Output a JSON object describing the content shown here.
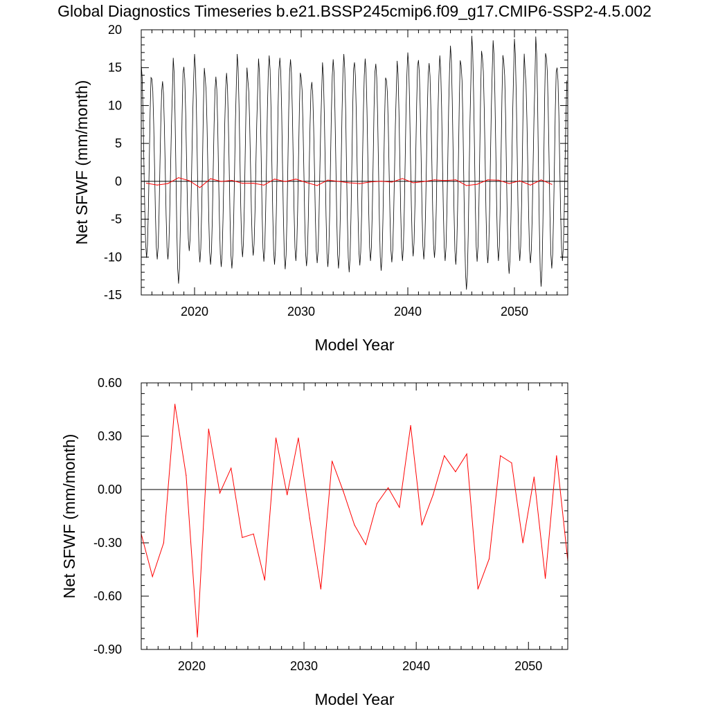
{
  "title": "Global Diagnostics Timeseries b.e21.BSSP245cmip6.f09_g17.CMIP6-SSP2-4.5.002",
  "colors": {
    "monthly": "#000000",
    "annual": "#ff0000",
    "zero_line": "#000000"
  },
  "chart_data": [
    {
      "type": "line",
      "xlabel": "Model Year",
      "ylabel": "Net SFWF (mm/month)",
      "xlim": [
        2015,
        2055
      ],
      "ylim": [
        -15,
        20
      ],
      "xticks": [
        2020,
        2030,
        2040,
        2050
      ],
      "yticks": [
        -15,
        -10,
        -5,
        0,
        5,
        10,
        15,
        20
      ],
      "ytick_labels": [
        "-15",
        "-10",
        "-5",
        "0",
        "5",
        "10",
        "15",
        "20"
      ],
      "reference_line_y": 0,
      "series": [
        {
          "kind": "monthly",
          "start_year": 2015,
          "annual_peaks": [
            15.4,
            13.5,
            13.2,
            16.3,
            15.1,
            16.8,
            13.6,
            13.8,
            14.3,
            16.8,
            13.4,
            16.2,
            16.6,
            16.3,
            16.1,
            13.7,
            13.1,
            15.7,
            16.1,
            16.8,
            15.7,
            16.2,
            15.5,
            13.3,
            15.9,
            17.0,
            16.0,
            15.6,
            16.6,
            17.9,
            15.3,
            19.2,
            16.3,
            18.6,
            15.8,
            18.8,
            14.6,
            19.1,
            16.3,
            15.0
          ],
          "annual_troughs": [
            -10.1,
            -10.3,
            -10.3,
            -13.5,
            -9.2,
            -10.7,
            -11.0,
            -11.3,
            -11.5,
            -10.0,
            -9.8,
            -10.6,
            -11.0,
            -11.6,
            -10.5,
            -11.2,
            -10.8,
            -11.3,
            -11.5,
            -12.0,
            -11.1,
            -10.5,
            -11.8,
            -10.7,
            -10.5,
            -9.9,
            -10.3,
            -10.1,
            -10.5,
            -11.0,
            -14.3,
            -10.6,
            -10.8,
            -10.5,
            -12.2,
            -10.5,
            -10.8,
            -13.9,
            -11.5,
            -10.5
          ]
        },
        {
          "kind": "annual",
          "x": [
            2015.5,
            2016.5,
            2017.5,
            2018.5,
            2019.5,
            2020.5,
            2021.5,
            2022.5,
            2023.5,
            2024.5,
            2025.5,
            2026.5,
            2027.5,
            2028.5,
            2029.5,
            2030.5,
            2031.5,
            2032.5,
            2033.5,
            2034.5,
            2035.5,
            2036.5,
            2037.5,
            2038.5,
            2039.5,
            2040.5,
            2041.5,
            2042.5,
            2043.5,
            2044.5,
            2045.5,
            2046.5,
            2047.5,
            2048.5,
            2049.5,
            2050.5,
            2051.5,
            2052.5,
            2053.5
          ],
          "values": [
            -0.25,
            -0.49,
            -0.3,
            0.48,
            0.08,
            -0.83,
            0.34,
            -0.02,
            0.12,
            -0.27,
            -0.25,
            -0.51,
            0.29,
            -0.03,
            0.29,
            -0.16,
            -0.56,
            0.16,
            -0.01,
            -0.2,
            -0.31,
            -0.08,
            0.01,
            -0.1,
            0.36,
            -0.2,
            -0.03,
            0.19,
            0.1,
            0.2,
            -0.56,
            -0.39,
            0.19,
            0.15,
            -0.3,
            0.07,
            -0.5,
            0.19,
            -0.4
          ]
        }
      ]
    },
    {
      "type": "line",
      "xlabel": "Model Year",
      "ylabel": "Net SFWF (mm/month)",
      "xlim": [
        2015.5,
        2053.5
      ],
      "ylim": [
        -0.9,
        0.6
      ],
      "xticks": [
        2020,
        2030,
        2040,
        2050
      ],
      "yticks": [
        -0.9,
        -0.6,
        -0.3,
        0.0,
        0.3,
        0.6
      ],
      "ytick_labels": [
        "-0.90",
        "-0.60",
        "-0.30",
        "0.00",
        "0.30",
        "0.60"
      ],
      "reference_line_y": 0,
      "series": [
        {
          "kind": "annual",
          "x": [
            2015.5,
            2016.5,
            2017.5,
            2018.5,
            2019.5,
            2020.5,
            2021.5,
            2022.5,
            2023.5,
            2024.5,
            2025.5,
            2026.5,
            2027.5,
            2028.5,
            2029.5,
            2030.5,
            2031.5,
            2032.5,
            2033.5,
            2034.5,
            2035.5,
            2036.5,
            2037.5,
            2038.5,
            2039.5,
            2040.5,
            2041.5,
            2042.5,
            2043.5,
            2044.5,
            2045.5,
            2046.5,
            2047.5,
            2048.5,
            2049.5,
            2050.5,
            2051.5,
            2052.5,
            2053.5
          ],
          "values": [
            -0.25,
            -0.49,
            -0.3,
            0.48,
            0.08,
            -0.83,
            0.34,
            -0.02,
            0.12,
            -0.27,
            -0.25,
            -0.51,
            0.29,
            -0.03,
            0.29,
            -0.16,
            -0.56,
            0.16,
            -0.01,
            -0.2,
            -0.31,
            -0.08,
            0.01,
            -0.1,
            0.36,
            -0.2,
            -0.03,
            0.19,
            0.1,
            0.2,
            -0.56,
            -0.39,
            0.19,
            0.15,
            -0.3,
            0.07,
            -0.5,
            0.19,
            -0.4
          ]
        }
      ]
    }
  ]
}
